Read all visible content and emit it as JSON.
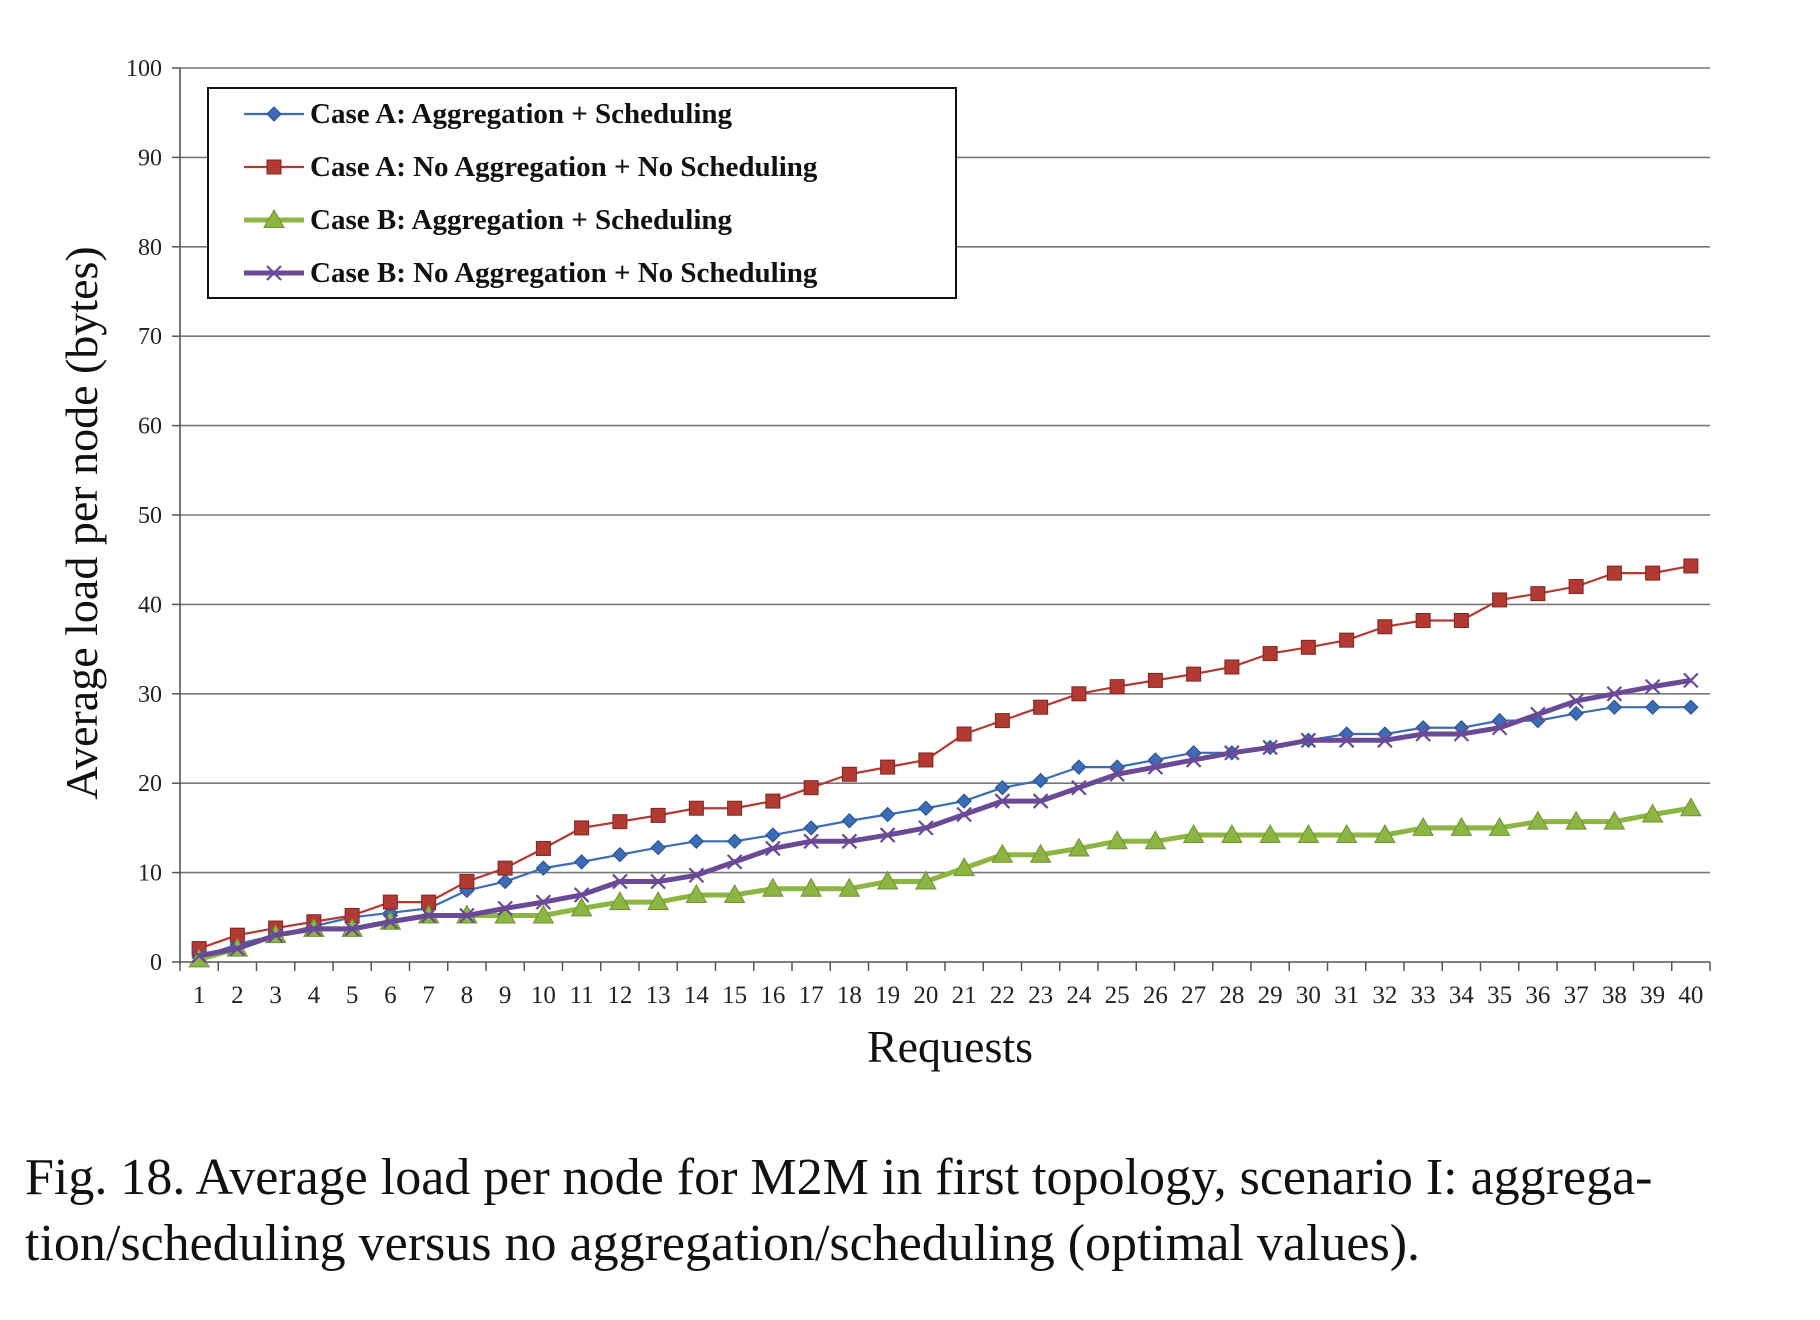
{
  "chart_data": {
    "type": "line",
    "xlabel": "Requests",
    "ylabel": "Average load per node (bytes)",
    "ylim": [
      0,
      100
    ],
    "y_ticks": [
      0,
      10,
      20,
      30,
      40,
      50,
      60,
      70,
      80,
      90,
      100
    ],
    "categories": [
      "1",
      "2",
      "3",
      "4",
      "5",
      "6",
      "7",
      "8",
      "9",
      "10",
      "11",
      "12",
      "13",
      "14",
      "15",
      "16",
      "17",
      "18",
      "19",
      "20",
      "21",
      "22",
      "23",
      "24",
      "25",
      "26",
      "27",
      "28",
      "29",
      "30",
      "31",
      "32",
      "33",
      "34",
      "35",
      "36",
      "37",
      "38",
      "39",
      "40"
    ],
    "grid": "horizontal",
    "legend_position": "top-left",
    "series": [
      {
        "name": "Case A: Aggregation + Scheduling",
        "color": "#3b6cb5",
        "marker": "diamond",
        "values": [
          0.5,
          2,
          3,
          4,
          5,
          5.5,
          6,
          8,
          9,
          10.5,
          11.2,
          12,
          12.8,
          13.5,
          13.5,
          14.2,
          15,
          15.8,
          16.5,
          17.2,
          18,
          19.5,
          20.3,
          21.8,
          21.8,
          22.6,
          23.4,
          23.4,
          24,
          24.8,
          25.5,
          25.5,
          26.2,
          26.2,
          27,
          27,
          27.8,
          28.5,
          28.5,
          28.5
        ]
      },
      {
        "name": "Case A: No Aggregation + No Scheduling",
        "color": "#b33a32",
        "marker": "square",
        "values": [
          1.5,
          3,
          3.8,
          4.5,
          5.2,
          6.7,
          6.7,
          9,
          10.5,
          12.7,
          15,
          15.7,
          16.4,
          17.2,
          17.2,
          18,
          19.5,
          21,
          21.8,
          22.6,
          25.5,
          27,
          28.5,
          30,
          30.8,
          31.5,
          32.2,
          33,
          34.5,
          35.2,
          36,
          37.5,
          38.2,
          38.2,
          40.5,
          41.2,
          42,
          43.5,
          43.5,
          44.3
        ]
      },
      {
        "name": "Case B: Aggregation + Scheduling",
        "color": "#8db543",
        "marker": "triangle",
        "values": [
          0.3,
          1.5,
          3,
          3.7,
          3.7,
          4.5,
          5.2,
          5.2,
          5.2,
          5.2,
          6,
          6.7,
          6.7,
          7.5,
          7.5,
          8.2,
          8.2,
          8.2,
          9,
          9,
          10.5,
          12,
          12,
          12.7,
          13.5,
          13.5,
          14.2,
          14.2,
          14.2,
          14.2,
          14.2,
          14.2,
          15,
          15,
          15,
          15.7,
          15.7,
          15.7,
          16.5,
          17.2
        ]
      },
      {
        "name": "Case B: No Aggregation + No Scheduling",
        "color": "#6a4a96",
        "marker": "x",
        "values": [
          0.7,
          1.5,
          3,
          3.7,
          3.7,
          4.5,
          5.2,
          5.2,
          6,
          6.7,
          7.5,
          9,
          9,
          9.7,
          11.2,
          12.7,
          13.5,
          13.5,
          14.2,
          15,
          16.5,
          18,
          18,
          19.5,
          21,
          21.8,
          22.6,
          23.4,
          24,
          24.8,
          24.8,
          24.8,
          25.5,
          25.5,
          26.2,
          27.7,
          29.2,
          30,
          30.8,
          31.5
        ]
      }
    ]
  },
  "caption": {
    "line1": "Fig. 18.  Average load per node for M2M in first topology, scenario I: aggrega-",
    "line2": "tion/scheduling versus no aggregation/scheduling (optimal values)."
  }
}
